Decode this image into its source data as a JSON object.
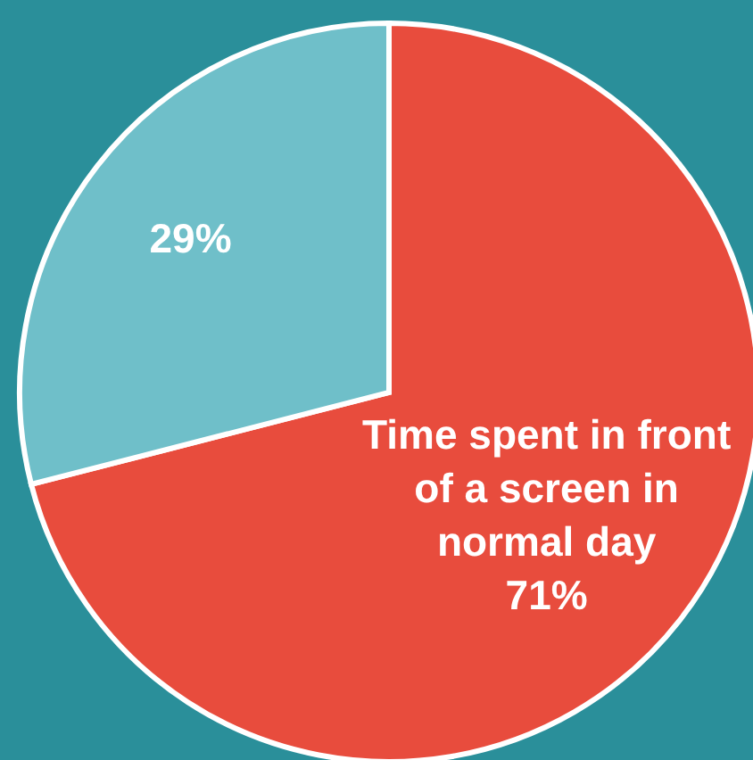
{
  "chart_data": {
    "type": "pie",
    "categories": [
      "Time spent in front of a screen in normal day",
      null
    ],
    "values": [
      71,
      29
    ],
    "colors": [
      "#e84c3d",
      "#6fbfc9"
    ],
    "value_labels": [
      "71%",
      "29%"
    ]
  }
}
